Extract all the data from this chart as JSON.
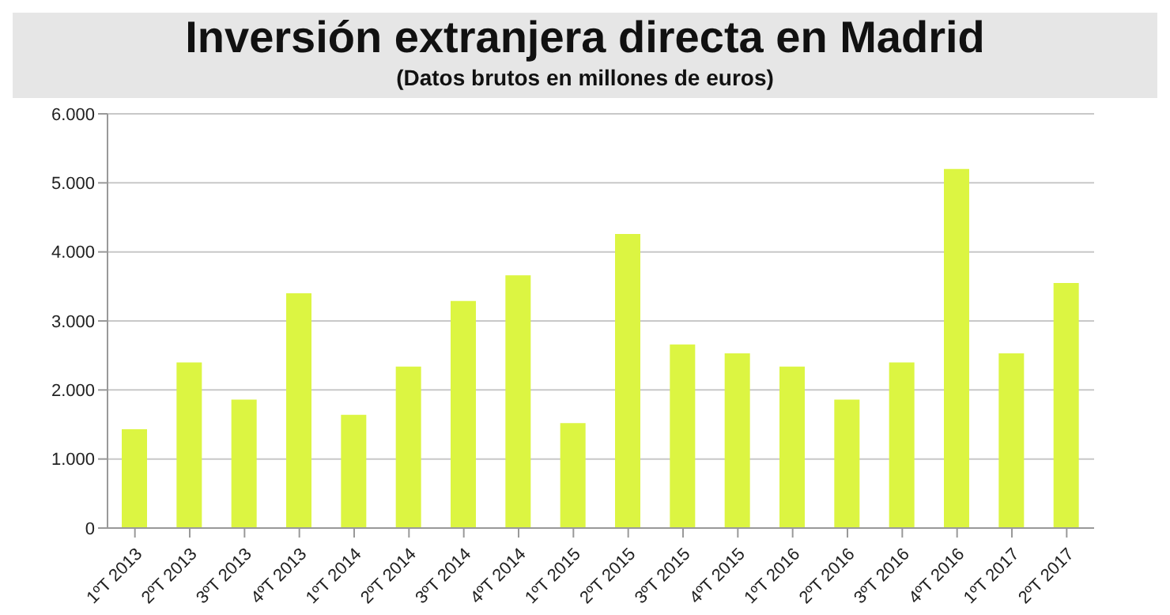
{
  "chart_data": {
    "type": "bar",
    "title": "Inversión extranjera directa en Madrid",
    "subtitle": "(Datos brutos en millones de euros)",
    "categories": [
      "1ºT 2013",
      "2ºT 2013",
      "3ºT 2013",
      "4ºT 2013",
      "1ºT 2014",
      "2ºT 2014",
      "3ºT 2014",
      "4ºT 2014",
      "1ºT 2015",
      "2ºT 2015",
      "3ºT 2015",
      "4ºT 2015",
      "1ºT 2016",
      "2ºT 2016",
      "3ºT 2016",
      "4ºT 2016",
      "1ºT 2017",
      "2ºT 2017"
    ],
    "values": [
      1430,
      2400,
      1860,
      3400,
      1640,
      2340,
      3290,
      3660,
      1520,
      4260,
      2660,
      2530,
      2340,
      1860,
      2400,
      5200,
      2530,
      3550
    ],
    "color": "#dcf542",
    "ylim": [
      0,
      6000
    ],
    "yticks": [
      {
        "value": 0,
        "label": "0"
      },
      {
        "value": 1000,
        "label": "1.000"
      },
      {
        "value": 2000,
        "label": "2.000"
      },
      {
        "value": 3000,
        "label": "3.000"
      },
      {
        "value": 4000,
        "label": "4.000"
      },
      {
        "value": 5000,
        "label": "5.000"
      },
      {
        "value": 6000,
        "label": "6.000"
      }
    ],
    "grid": "y"
  }
}
